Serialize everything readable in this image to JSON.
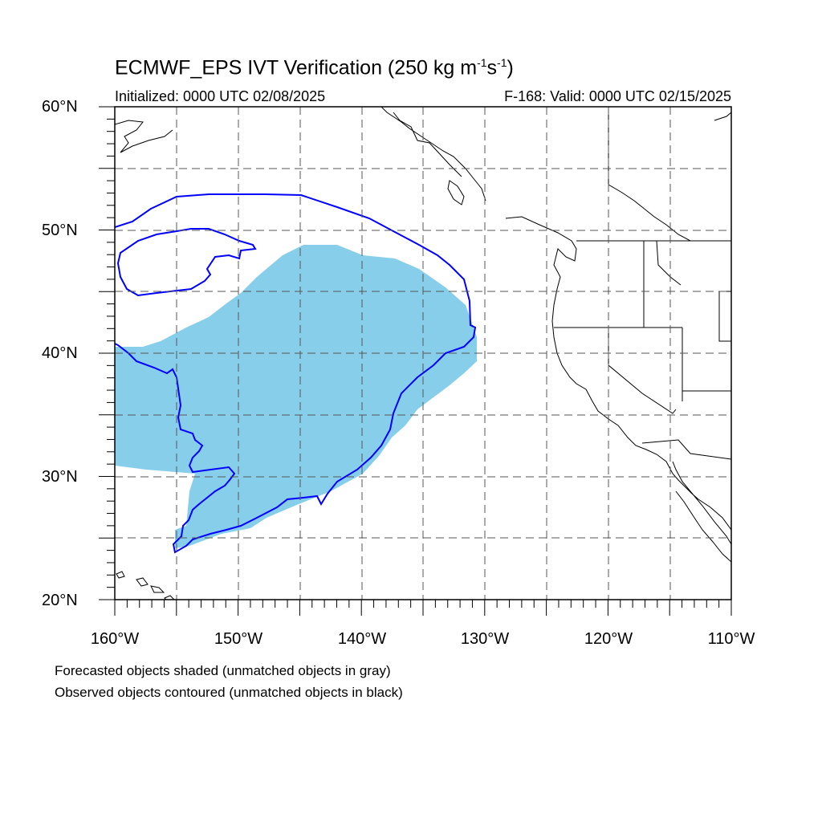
{
  "title": {
    "prefix": "ECMWF_EPS IVT Verification (250 kg m",
    "exp1": "-1",
    "mid": "s",
    "exp2": "-1",
    "suffix": ")"
  },
  "initialized": "Initialized: 0000 UTC 02/08/2025",
  "valid": "F-168: Valid: 0000 UTC 02/15/2025",
  "lat_labels": [
    "60°N",
    "50°N",
    "40°N",
    "30°N",
    "20°N"
  ],
  "lon_labels": [
    "160°W",
    "150°W",
    "140°W",
    "130°W",
    "120°W",
    "110°W"
  ],
  "notes": [
    "Forecasted objects shaded (unmatched objects in gray)",
    "Observed objects contoured (unmatched objects in black)"
  ],
  "colors": {
    "forecast_fill": "#87CEEB",
    "observed_contour": "#0000FF",
    "coastline": "#000000",
    "grid": "#555555"
  },
  "map_extent": {
    "lon": [
      -160,
      -110
    ],
    "lat": [
      20,
      60
    ]
  }
}
